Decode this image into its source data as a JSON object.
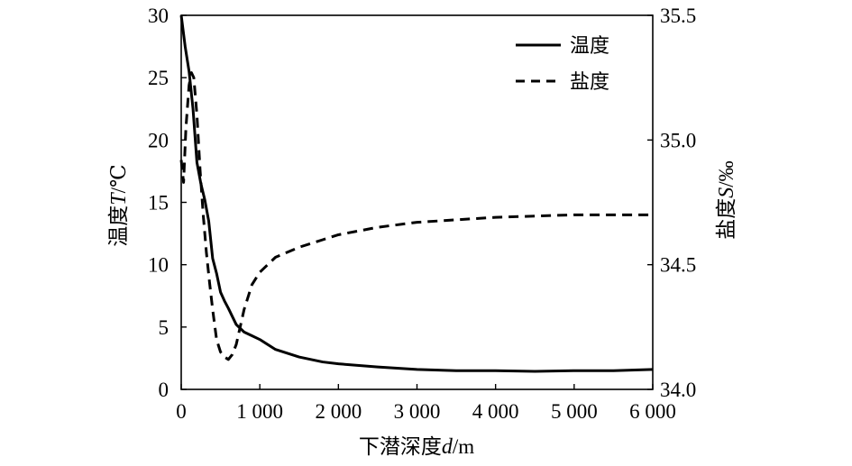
{
  "chart_data": {
    "type": "line",
    "x": {
      "label_cn": "下潜深度",
      "label_var": "d",
      "label_unit": "/m",
      "range": [
        0,
        6000
      ],
      "ticks": [
        0,
        1000,
        2000,
        3000,
        4000,
        5000,
        6000
      ],
      "tick_labels": [
        "0",
        "1 000",
        "2 000",
        "3 000",
        "4 000",
        "5 000",
        "6 000"
      ]
    },
    "y_left": {
      "label_cn": "温度",
      "label_var": "T",
      "label_unit": "/℃",
      "range": [
        0,
        30
      ],
      "ticks": [
        0,
        5,
        10,
        15,
        20,
        25,
        30
      ],
      "tick_labels": [
        "0",
        "5",
        "10",
        "15",
        "20",
        "25",
        "30"
      ]
    },
    "y_right": {
      "label_cn": "盐度",
      "label_var": "S",
      "label_unit": "/‰",
      "range": [
        34.0,
        35.5
      ],
      "ticks": [
        34.0,
        34.5,
        35.0,
        35.5
      ],
      "tick_labels": [
        "34.0",
        "34.5",
        "35.0",
        "35.5"
      ]
    },
    "legend": {
      "position": "top-right"
    },
    "series": [
      {
        "name": "温度",
        "axis": "left",
        "style": "solid",
        "x": [
          0,
          50,
          100,
          150,
          200,
          250,
          300,
          350,
          400,
          450,
          500,
          550,
          600,
          700,
          800,
          900,
          1000,
          1200,
          1500,
          1800,
          2000,
          2500,
          3000,
          3500,
          4000,
          4500,
          5000,
          5500,
          6000
        ],
        "y": [
          30,
          27.5,
          25.5,
          22.5,
          18.2,
          16.5,
          15.2,
          13.5,
          10.5,
          9.3,
          7.8,
          7.1,
          6.5,
          5.2,
          4.6,
          4.3,
          4.0,
          3.2,
          2.6,
          2.2,
          2.05,
          1.8,
          1.6,
          1.5,
          1.5,
          1.45,
          1.5,
          1.5,
          1.6
        ]
      },
      {
        "name": "盐度",
        "axis": "right",
        "style": "dashed",
        "x": [
          0,
          30,
          60,
          100,
          130,
          160,
          200,
          240,
          280,
          320,
          360,
          400,
          450,
          500,
          550,
          600,
          650,
          700,
          750,
          800,
          900,
          1000,
          1200,
          1500,
          1800,
          2000,
          2500,
          3000,
          4000,
          5000,
          6000
        ],
        "y": [
          34.92,
          34.83,
          35.05,
          35.22,
          35.27,
          35.25,
          35.1,
          34.88,
          34.7,
          34.55,
          34.43,
          34.32,
          34.2,
          34.15,
          34.13,
          34.12,
          34.14,
          34.18,
          34.25,
          34.32,
          34.42,
          34.47,
          34.53,
          34.57,
          34.6,
          34.62,
          34.65,
          34.67,
          34.69,
          34.7,
          34.7
        ]
      }
    ]
  }
}
